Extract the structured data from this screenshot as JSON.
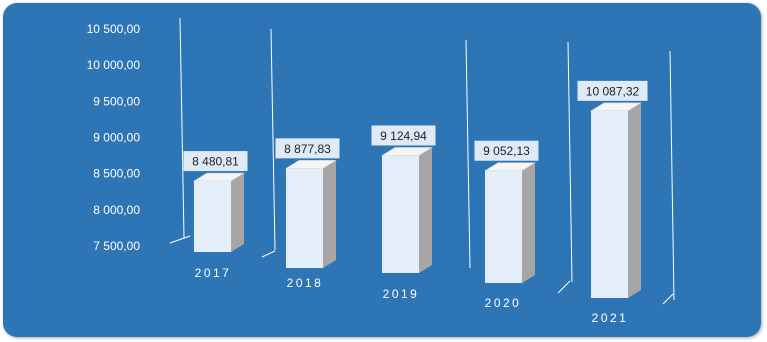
{
  "chart_data": {
    "type": "bar",
    "title": "",
    "xlabel": "",
    "ylabel": "",
    "categories": [
      "2017",
      "2018",
      "2019",
      "2020",
      "2021"
    ],
    "values": [
      8480.81,
      8877.83,
      9124.94,
      9052.13,
      10087.32
    ],
    "data_labels": [
      "8 480,81",
      "8 877,83",
      "9 124,94",
      "9 052,13",
      "10 087,32"
    ],
    "ylim": [
      7500,
      10500
    ],
    "y_ticks": [
      "7 500,00",
      "8 000,00",
      "8 500,00",
      "9 000,00",
      "9 500,00",
      "10 000,00",
      "10 500,00"
    ],
    "legend": "none",
    "style": "3d-columns",
    "colors": {
      "background": "#2e75b6",
      "bar_front": "#e4eef9",
      "bar_side": "#a6a6a6",
      "bar_top": "#f5f5f5",
      "label_box": "#deebf7",
      "text": "#ffffff"
    }
  }
}
